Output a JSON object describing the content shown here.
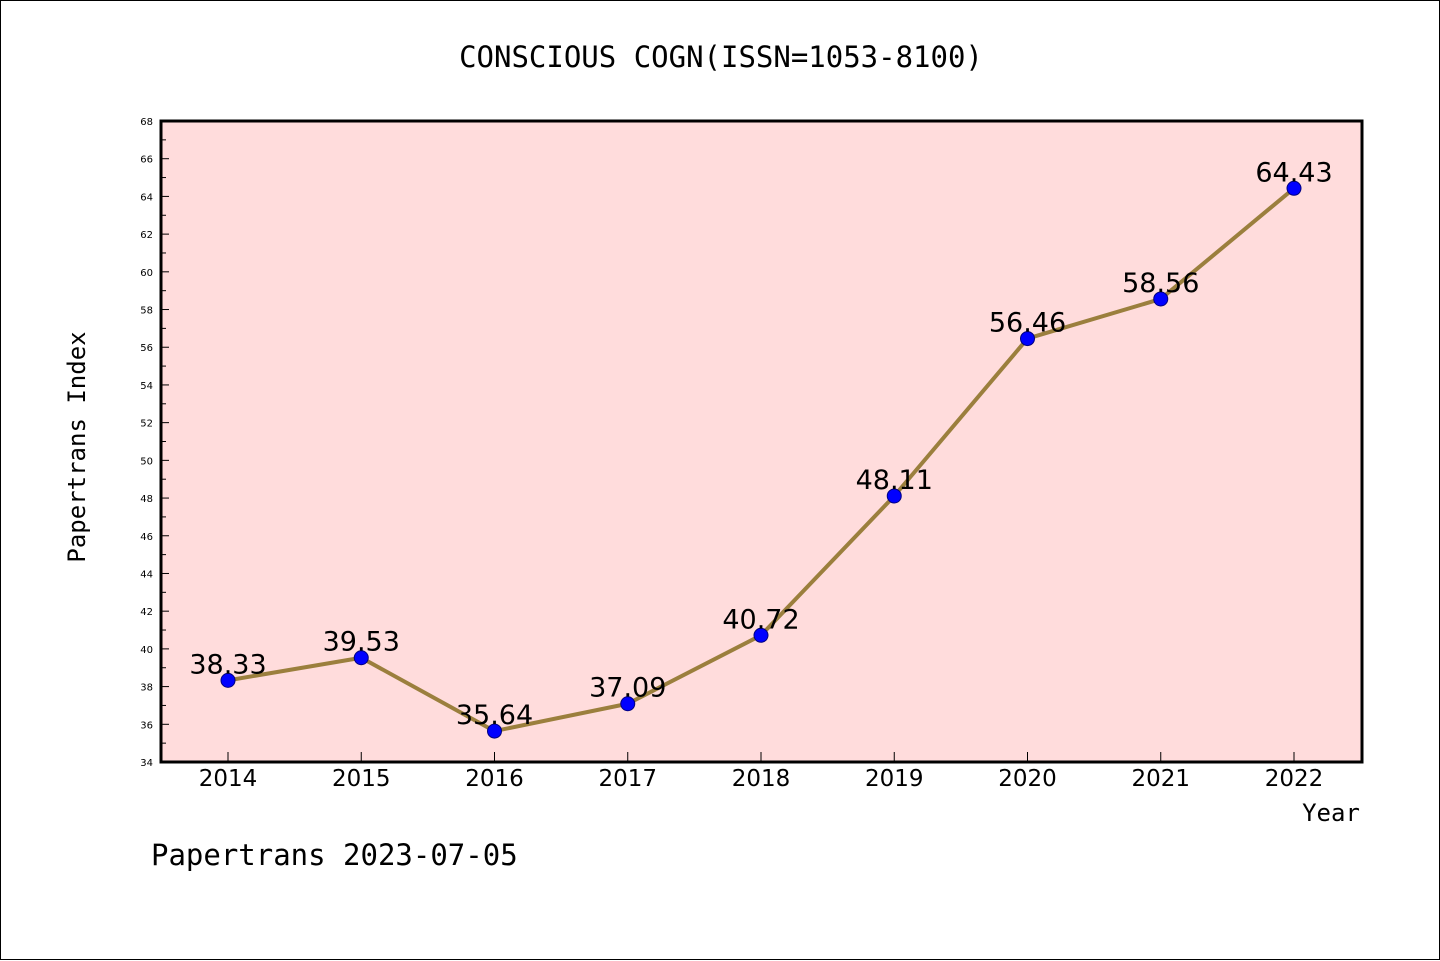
{
  "chart_data": {
    "type": "line",
    "title": "CONSCIOUS COGN(ISSN=1053-8100)",
    "xlabel": "Year",
    "ylabel": "Papertrans Index",
    "categories": [
      "2014",
      "2015",
      "2016",
      "2017",
      "2018",
      "2019",
      "2020",
      "2021",
      "2022"
    ],
    "values": [
      38.33,
      39.53,
      35.64,
      37.09,
      40.72,
      48.11,
      56.46,
      58.56,
      64.43
    ],
    "data_labels": [
      "38.33",
      "39.53",
      "35.64",
      "37.09",
      "40.72",
      "48.11",
      "56.46",
      "58.56",
      "64.43"
    ],
    "ylim": [
      34,
      68
    ],
    "y_ticks": [
      "34",
      "36",
      "38",
      "40",
      "42",
      "44",
      "46",
      "48",
      "50",
      "52",
      "54",
      "56",
      "58",
      "60",
      "62",
      "64",
      "66",
      "68"
    ],
    "grid": false,
    "legend": "none",
    "footer": "Papertrans 2023-07-05",
    "colors": {
      "plot_background": "#ffdcdc",
      "line": "#9b7f3d",
      "marker": "#0000ff",
      "marker_edge": "#000080",
      "axis": "#000000"
    }
  }
}
